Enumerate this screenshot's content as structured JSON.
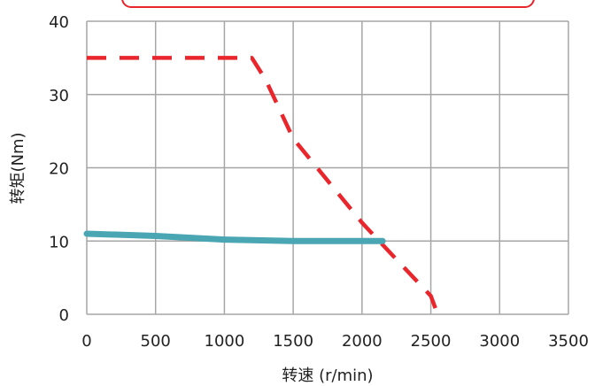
{
  "chart_data": {
    "type": "line",
    "xlabel": "转速 (r/min)",
    "ylabel": "转矩(Nm)",
    "xlim": [
      0,
      3500
    ],
    "ylim": [
      0,
      40
    ],
    "xticks": [
      0,
      500,
      1000,
      1500,
      2000,
      2500,
      3000,
      3500
    ],
    "yticks": [
      0,
      10,
      20,
      30,
      40
    ],
    "grid": true,
    "legend": "top",
    "series": [
      {
        "style": "dashed",
        "color": "#e8262c",
        "x": [
          0,
          1200,
          1300,
          1500,
          2000,
          2200,
          2500,
          2550
        ],
        "y": [
          35,
          35,
          32,
          24,
          12.5,
          8.5,
          2.5,
          0
        ]
      },
      {
        "style": "solid",
        "color": "#4aa6b3",
        "x": [
          0,
          500,
          1000,
          1500,
          2000,
          2150
        ],
        "y": [
          11,
          10.7,
          10.2,
          10,
          10,
          10
        ]
      }
    ]
  },
  "colors": {
    "grid": "#a6a6a6",
    "legend_border": "#e8262c"
  }
}
